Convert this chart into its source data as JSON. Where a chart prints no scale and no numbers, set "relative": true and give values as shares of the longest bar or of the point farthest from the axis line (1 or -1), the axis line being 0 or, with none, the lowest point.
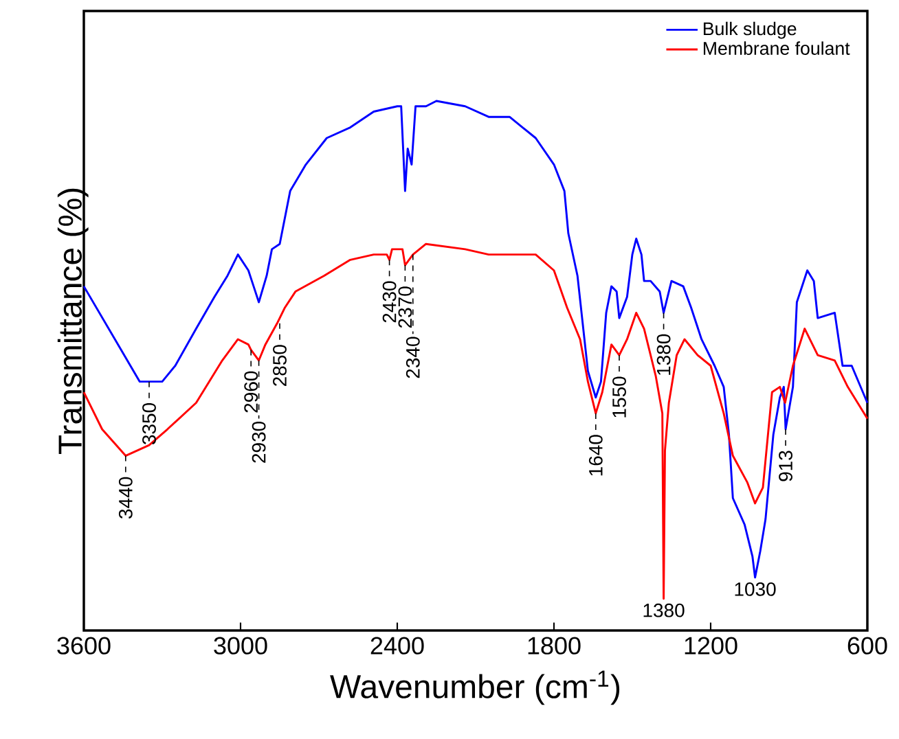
{
  "chart_data": {
    "type": "line",
    "relative": true,
    "xlabel": "Wavenumber (cm$^{-1}$)",
    "ylabel": "Transmittance (%)",
    "xlim": [
      3600,
      600
    ],
    "xticks": [
      3600,
      3000,
      2400,
      1800,
      1200,
      600
    ],
    "tick_labels": "x",
    "legend": "top right",
    "series": [
      {
        "name": "Bulk sludge",
        "color": "#0000ff",
        "x": [
          3600,
          3386,
          3300,
          3250,
          3170,
          3100,
          3050,
          3010,
          2970,
          2950,
          2930,
          2900,
          2880,
          2850,
          2830,
          2810,
          2750,
          2670,
          2580,
          2490,
          2400,
          2385,
          2370,
          2360,
          2345,
          2330,
          2290,
          2250,
          2140,
          2050,
          1970,
          1870,
          1800,
          1760,
          1745,
          1710,
          1670,
          1640,
          1620,
          1600,
          1580,
          1560,
          1550,
          1520,
          1500,
          1485,
          1465,
          1455,
          1430,
          1395,
          1380,
          1350,
          1305,
          1275,
          1235,
          1185,
          1150,
          1130,
          1115,
          1070,
          1040,
          1030,
          1010,
          990,
          960,
          935,
          920,
          913,
          885,
          870,
          830,
          805,
          790,
          725,
          695,
          660,
          600
        ],
        "values": [
          0.65,
          0.47,
          0.47,
          0.5,
          0.57,
          0.63,
          0.67,
          0.71,
          0.68,
          0.65,
          0.62,
          0.67,
          0.72,
          0.73,
          0.78,
          0.83,
          0.88,
          0.93,
          0.95,
          0.98,
          0.99,
          0.99,
          0.83,
          0.91,
          0.88,
          0.99,
          0.99,
          1.0,
          0.99,
          0.97,
          0.97,
          0.93,
          0.88,
          0.83,
          0.75,
          0.67,
          0.49,
          0.44,
          0.47,
          0.6,
          0.65,
          0.64,
          0.59,
          0.63,
          0.71,
          0.74,
          0.71,
          0.66,
          0.66,
          0.64,
          0.6,
          0.66,
          0.65,
          0.61,
          0.55,
          0.5,
          0.46,
          0.37,
          0.25,
          0.2,
          0.14,
          0.1,
          0.15,
          0.21,
          0.37,
          0.44,
          0.46,
          0.38,
          0.46,
          0.62,
          0.68,
          0.66,
          0.59,
          0.6,
          0.5,
          0.5,
          0.43
        ]
      },
      {
        "name": "Membrane foulant",
        "color": "#ff0000",
        "x": [
          3600,
          3530,
          3440,
          3350,
          3280,
          3170,
          3070,
          3010,
          2970,
          2960,
          2930,
          2905,
          2860,
          2830,
          2790,
          2680,
          2580,
          2490,
          2440,
          2430,
          2420,
          2380,
          2370,
          2355,
          2340,
          2290,
          2140,
          2050,
          1870,
          1800,
          1750,
          1700,
          1670,
          1640,
          1615,
          1580,
          1550,
          1520,
          1485,
          1455,
          1410,
          1385,
          1380,
          1375,
          1360,
          1330,
          1300,
          1250,
          1200,
          1150,
          1115,
          1060,
          1030,
          1000,
          965,
          935,
          915,
          885,
          840,
          790,
          725,
          675,
          600
        ],
        "values": [
          0.45,
          0.38,
          0.33,
          0.35,
          0.38,
          0.43,
          0.51,
          0.55,
          0.54,
          0.53,
          0.51,
          0.54,
          0.58,
          0.61,
          0.64,
          0.67,
          0.7,
          0.71,
          0.71,
          0.7,
          0.72,
          0.72,
          0.69,
          0.7,
          0.71,
          0.73,
          0.72,
          0.71,
          0.71,
          0.68,
          0.61,
          0.55,
          0.47,
          0.41,
          0.45,
          0.54,
          0.52,
          0.55,
          0.6,
          0.57,
          0.48,
          0.41,
          0.06,
          0.34,
          0.43,
          0.52,
          0.55,
          0.52,
          0.5,
          0.41,
          0.33,
          0.28,
          0.24,
          0.27,
          0.45,
          0.46,
          0.43,
          0.5,
          0.57,
          0.52,
          0.51,
          0.46,
          0.4
        ]
      }
    ],
    "annotations": [
      {
        "text": "3350",
        "x": 3350,
        "y": 0.47
      },
      {
        "text": "3440",
        "x": 3440,
        "y": 0.33
      },
      {
        "text": "2960",
        "x": 2960,
        "y": 0.53
      },
      {
        "text": "2930",
        "x": 2930,
        "y": 0.51
      },
      {
        "text": "2850",
        "x": 2850,
        "y": 0.58
      },
      {
        "text": "2430",
        "x": 2430,
        "y": 0.7
      },
      {
        "text": "2370",
        "x": 2370,
        "y": 0.69
      },
      {
        "text": "2340",
        "x": 2340,
        "y": 0.71
      },
      {
        "text": "1640",
        "x": 1640,
        "y": 0.41
      },
      {
        "text": "1550",
        "x": 1550,
        "y": 0.52
      },
      {
        "text": "1380",
        "x": 1380,
        "y": 0.6
      },
      {
        "text": "1380",
        "x": 1380,
        "y": 0.06
      },
      {
        "text": "1030",
        "x": 1030,
        "y": 0.1
      },
      {
        "text": "913",
        "x": 913,
        "y": 0.38
      }
    ]
  }
}
